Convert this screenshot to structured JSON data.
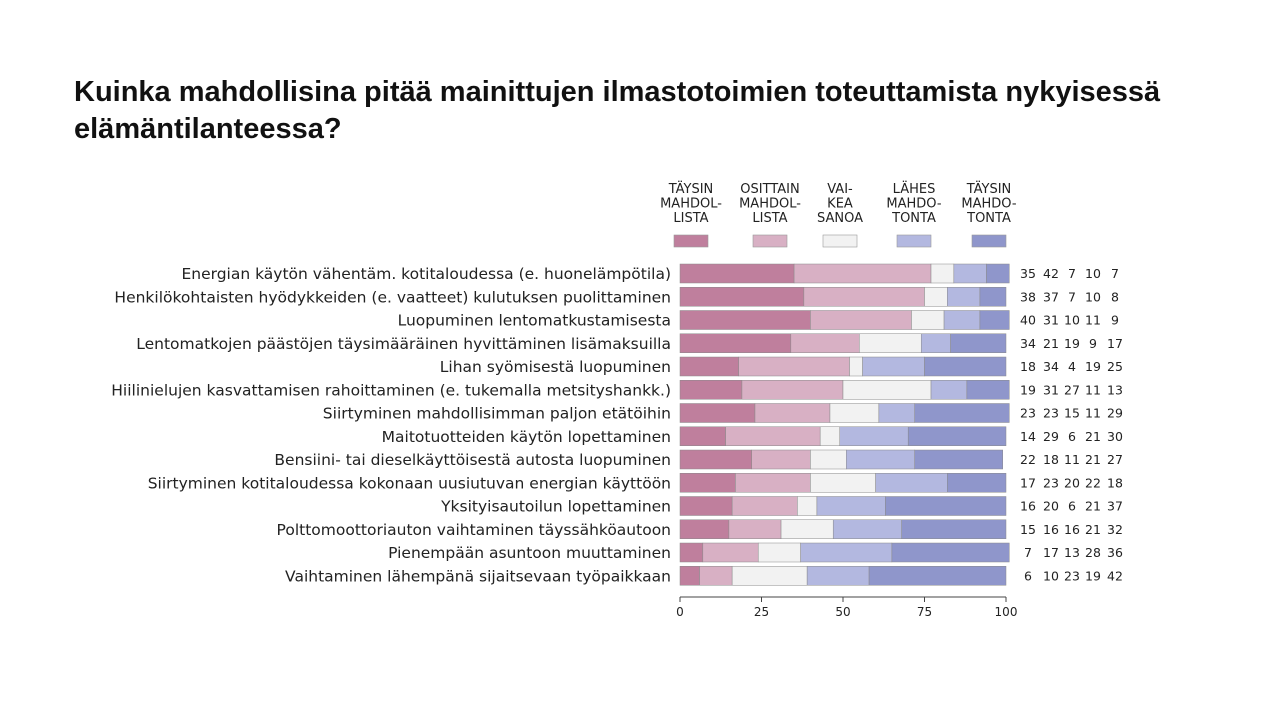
{
  "title": "Kuinka mahdollisina pitää mainittujen ilmastotoimien toteuttamista nykyisessä elämäntilanteessa?",
  "chart_data": {
    "type": "bar",
    "orientation": "horizontal",
    "stacked": true,
    "title": "Kuinka mahdollisina pitää mainittujen ilmastotoimien toteuttamista nykyisessä elämäntilanteessa?",
    "xlim": [
      0,
      100
    ],
    "xticks": [
      0,
      25,
      50,
      75,
      100
    ],
    "legend_position": "top",
    "categories": [
      "Energian käytön vähentäm. kotitaloudessa (e. huonelämpötila)",
      "Henkilökohtaisten hyödykkeiden (e. vaatteet) kulutuksen puolittaminen",
      "Luopuminen lentomatkustamisesta",
      "Lentomatkojen päästöjen täysimääräinen hyvittäminen lisämaksuilla",
      "Lihan syömisestä luopuminen",
      "Hiilinielujen kasvattamisen rahoittaminen (e. tukemalla metsityshankk.)",
      "Siirtyminen mahdollisimman paljon etätöihin",
      "Maitotuotteiden käytön lopettaminen",
      "Bensiini- tai dieselkäyttöisestä autosta luopuminen",
      "Siirtyminen kotitaloudessa kokonaan uusiutuvan energian käyttöön",
      "Yksityisautoilun lopettaminen",
      "Polttomoottoriauton vaihtaminen täyssähköautoon",
      "Pienempään asuntoon muuttaminen",
      "Vaihtaminen lähempänä sijaitsevaan työpaikkaan"
    ],
    "series": [
      {
        "name": "TÄYSIN MAHDOL-LISTA",
        "legend_lines": [
          "TÄYSIN",
          "MAHDOL-",
          "LISTA"
        ],
        "color": "#bf7f9d",
        "values": [
          35,
          38,
          40,
          34,
          18,
          19,
          23,
          14,
          22,
          17,
          16,
          15,
          7,
          6
        ]
      },
      {
        "name": "OSITTAIN MAHDOL-LISTA",
        "legend_lines": [
          "OSITTAIN",
          "MAHDOL-",
          "LISTA"
        ],
        "color": "#d8b0c4",
        "values": [
          42,
          37,
          31,
          21,
          34,
          31,
          23,
          29,
          18,
          23,
          20,
          16,
          17,
          10
        ]
      },
      {
        "name": "VAI-KEA SANOA",
        "legend_lines": [
          "VAI-",
          "KEA",
          "SANOA"
        ],
        "color": "#f2f2f2",
        "values": [
          7,
          7,
          10,
          19,
          4,
          27,
          15,
          6,
          11,
          20,
          6,
          16,
          13,
          23
        ]
      },
      {
        "name": "LÄHES MAHDO-TONTA",
        "legend_lines": [
          "LÄHES",
          "MAHDO-",
          "TONTA"
        ],
        "color": "#b3b8e0",
        "values": [
          10,
          10,
          11,
          9,
          19,
          11,
          11,
          21,
          21,
          22,
          21,
          21,
          28,
          19
        ]
      },
      {
        "name": "TÄYSIN MAHDO-TONTA",
        "legend_lines": [
          "TÄYSIN",
          "MAHDO-",
          "TONTA"
        ],
        "color": "#8f96cb",
        "values": [
          7,
          8,
          9,
          17,
          25,
          13,
          29,
          30,
          27,
          18,
          37,
          32,
          36,
          42
        ]
      }
    ]
  }
}
